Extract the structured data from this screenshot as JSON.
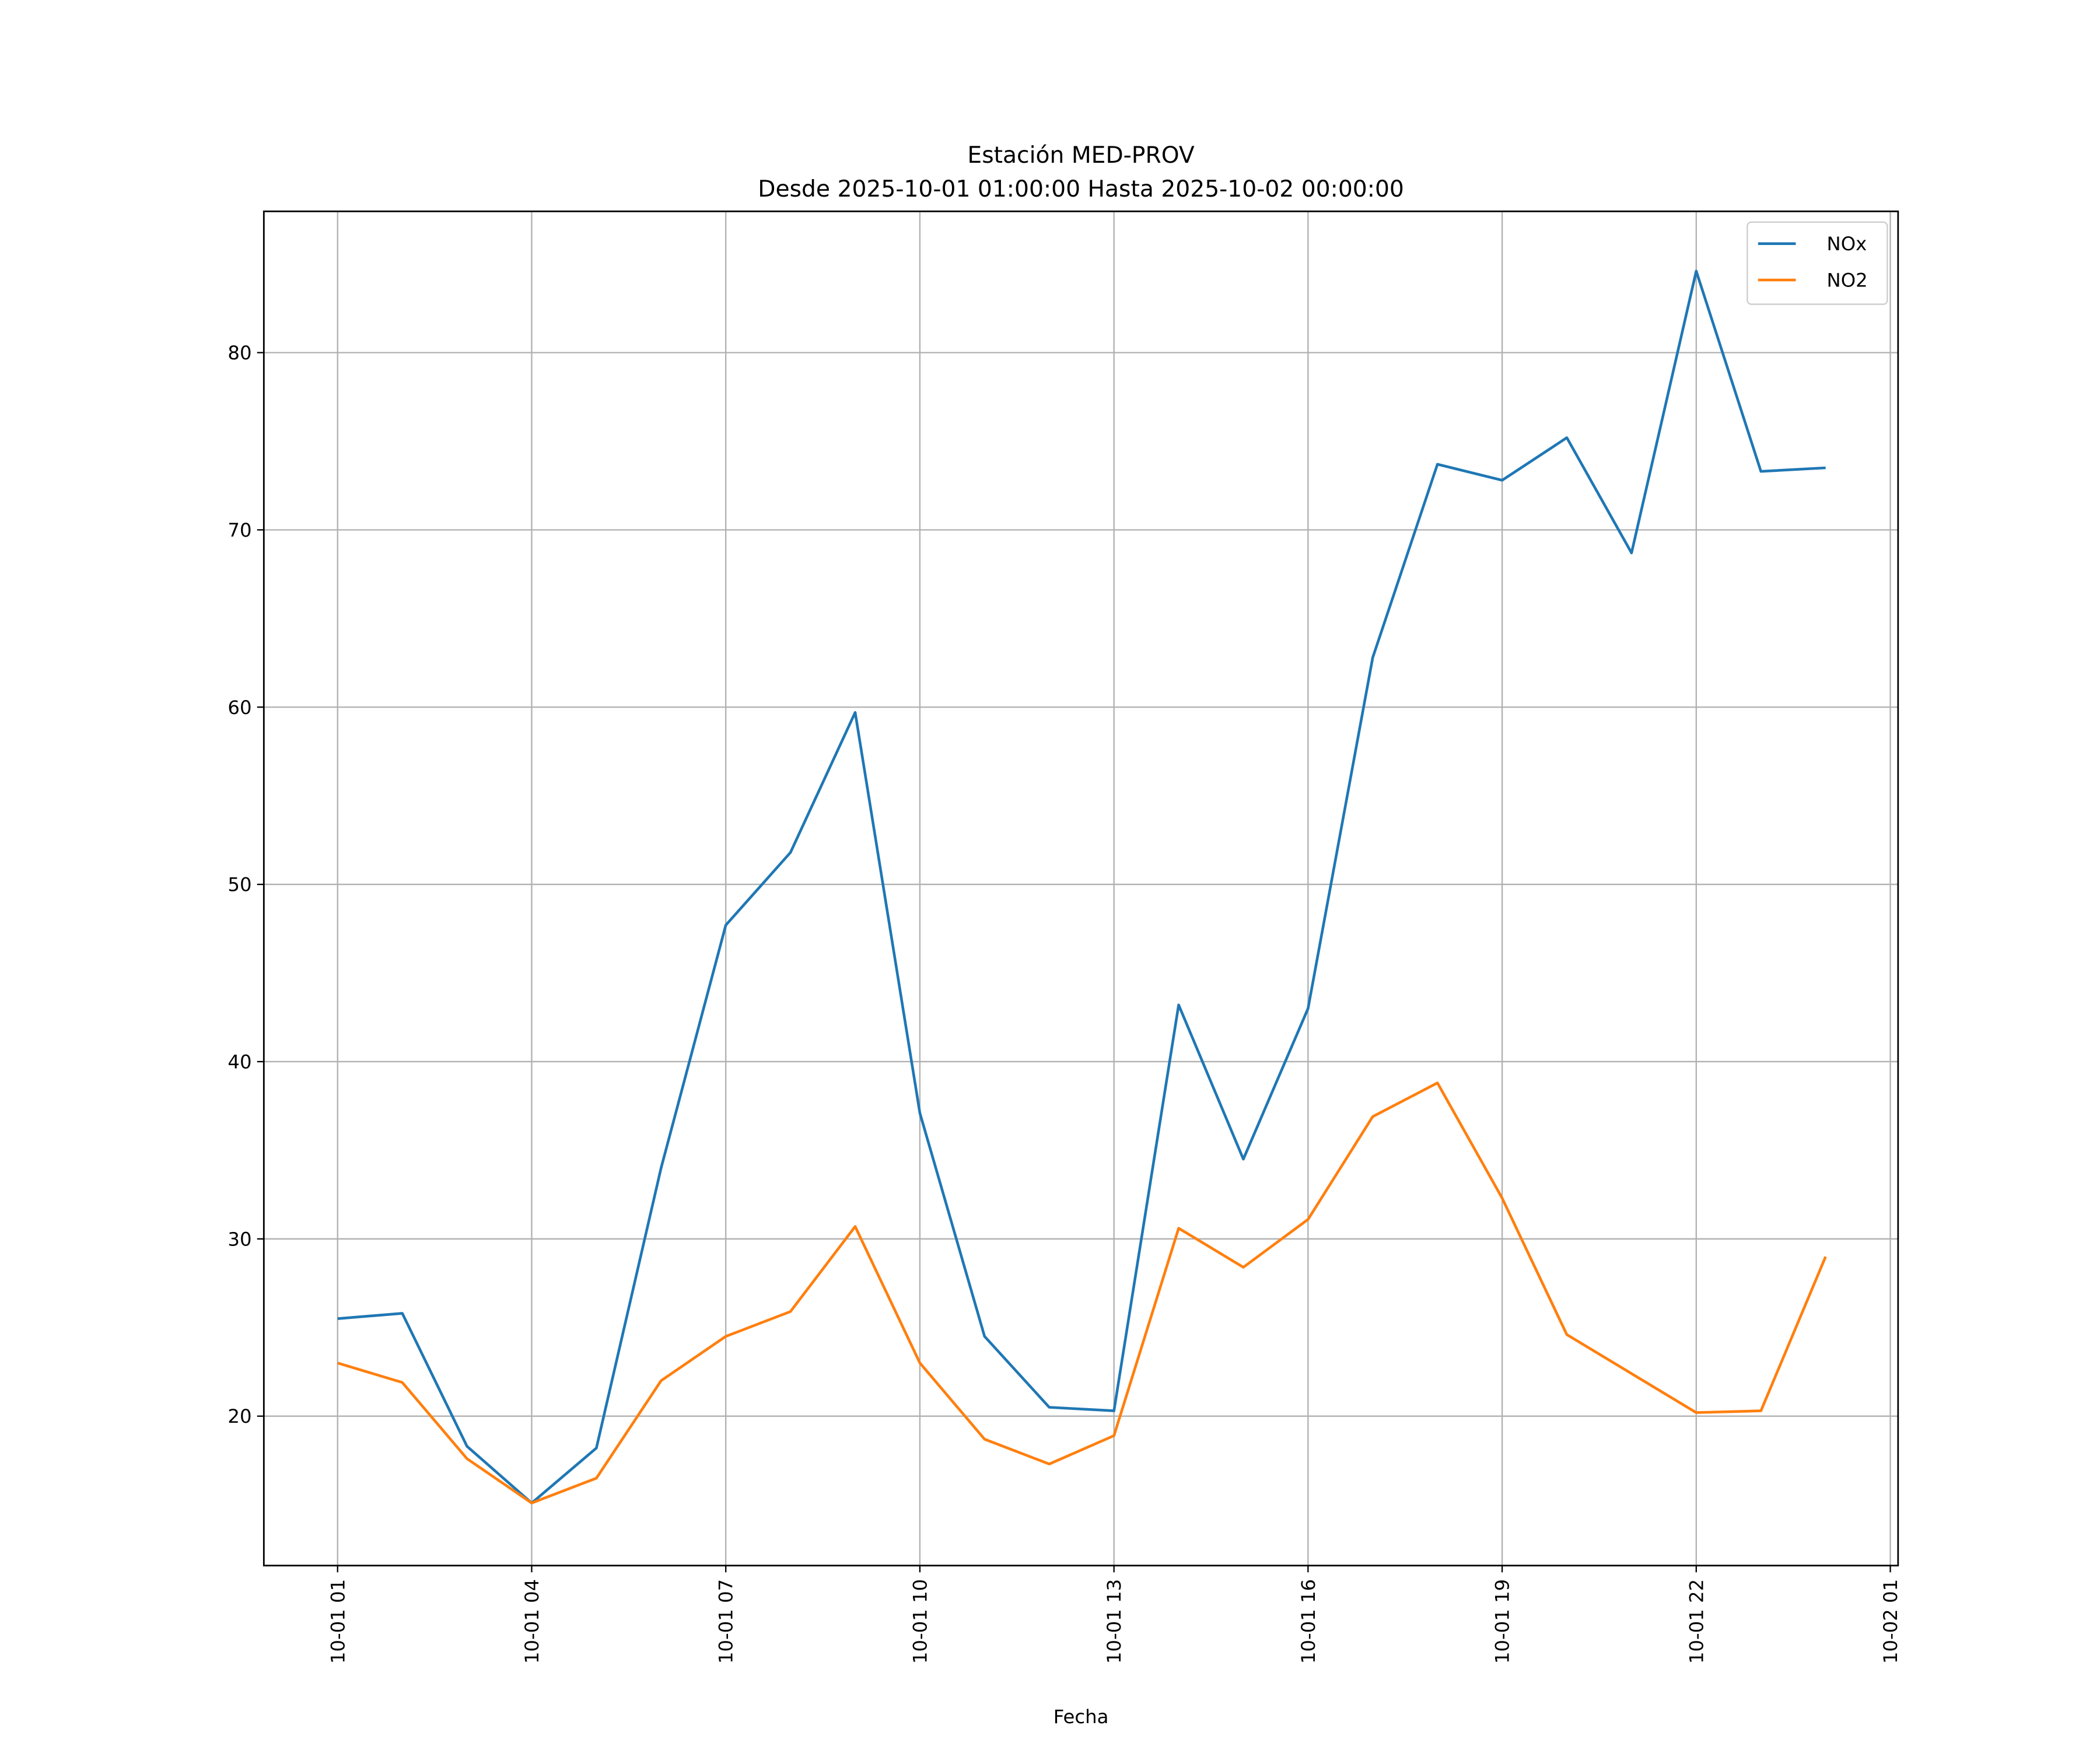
{
  "chart_data": {
    "type": "line",
    "title": "Estación MED-PROV",
    "subtitle": "Desde 2025-10-01 01:00:00 Hasta 2025-10-02 00:00:00",
    "xlabel": "Fecha",
    "ylabel": "",
    "x_unit": "hours since 2025-10-01 01:00",
    "x": [
      0,
      1,
      2,
      3,
      4,
      5,
      6,
      7,
      8,
      9,
      10,
      11,
      12,
      13,
      14,
      15,
      16,
      17,
      18,
      19,
      20,
      21,
      22,
      23
    ],
    "xlim": [
      -1.14,
      24.12
    ],
    "ylim": [
      11.57,
      87.97
    ],
    "xticks": [
      0,
      3,
      6,
      9,
      12,
      15,
      18,
      21,
      24
    ],
    "xtick_labels": [
      "10-01 01",
      "10-01 04",
      "10-01 07",
      "10-01 10",
      "10-01 13",
      "10-01 16",
      "10-01 19",
      "10-01 22",
      "10-02 01"
    ],
    "yticks": [
      20,
      30,
      40,
      50,
      60,
      70,
      80
    ],
    "ytick_labels": [
      "20",
      "30",
      "40",
      "50",
      "60",
      "70",
      "80"
    ],
    "grid": true,
    "legend_position": "top-right",
    "series": [
      {
        "name": "NOx",
        "color": "#1f77b4",
        "values": [
          25.5,
          25.8,
          18.3,
          15.1,
          18.2,
          34.0,
          47.7,
          51.8,
          59.7,
          37.1,
          24.5,
          20.5,
          20.3,
          43.2,
          34.5,
          43.0,
          62.8,
          73.7,
          72.8,
          75.2,
          68.7,
          84.6,
          73.3,
          73.5
        ]
      },
      {
        "name": "NO2",
        "color": "#ff7f0e",
        "values": [
          23.0,
          21.9,
          17.6,
          15.1,
          16.5,
          22.0,
          24.5,
          25.9,
          30.7,
          23.0,
          18.7,
          17.3,
          18.9,
          30.6,
          28.4,
          31.1,
          36.9,
          38.8,
          32.3,
          24.6,
          22.4,
          20.2,
          20.3,
          29.0
        ]
      }
    ]
  }
}
